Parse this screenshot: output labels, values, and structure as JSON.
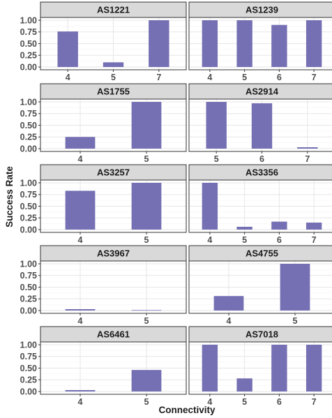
{
  "chart_data": {
    "type": "bar",
    "facet": "wrap",
    "xlabel": "Connectivity",
    "ylabel": "Success Rate",
    "ylim": [
      0,
      1
    ],
    "yticks": [
      "0.00",
      "0.25",
      "0.50",
      "0.75",
      "1.00"
    ],
    "bar_color": "#7570b3",
    "grid": true,
    "panels": [
      {
        "title": "AS1221",
        "categories": [
          "4",
          "5",
          "7"
        ],
        "values": [
          0.76,
          0.1,
          1.0
        ]
      },
      {
        "title": "AS1239",
        "categories": [
          "4",
          "5",
          "6",
          "7"
        ],
        "values": [
          1.0,
          1.0,
          0.9,
          1.0
        ]
      },
      {
        "title": "AS1755",
        "categories": [
          "4",
          "5"
        ],
        "values": [
          0.25,
          1.0
        ]
      },
      {
        "title": "AS2914",
        "categories": [
          "5",
          "6",
          "7"
        ],
        "values": [
          1.0,
          0.97,
          0.03
        ]
      },
      {
        "title": "AS3257",
        "categories": [
          "4",
          "5"
        ],
        "values": [
          0.83,
          1.0
        ]
      },
      {
        "title": "AS3356",
        "categories": [
          "4",
          "5",
          "6",
          "7"
        ],
        "values": [
          1.0,
          0.06,
          0.17,
          0.15
        ]
      },
      {
        "title": "AS3967",
        "categories": [
          "4",
          "5"
        ],
        "values": [
          0.03,
          0.01
        ]
      },
      {
        "title": "AS4755",
        "categories": [
          "4",
          "5"
        ],
        "values": [
          0.31,
          1.0
        ]
      },
      {
        "title": "AS6461",
        "categories": [
          "4",
          "5"
        ],
        "values": [
          0.03,
          0.46
        ]
      },
      {
        "title": "AS7018",
        "categories": [
          "4",
          "5",
          "6",
          "7"
        ],
        "values": [
          1.0,
          0.28,
          1.0,
          1.0
        ]
      }
    ]
  }
}
